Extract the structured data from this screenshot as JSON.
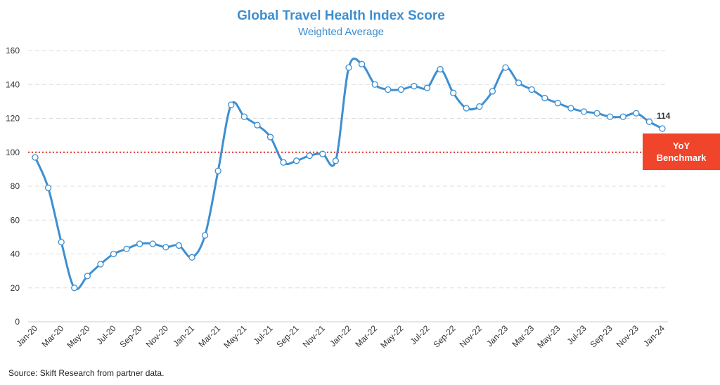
{
  "chart_data": {
    "type": "line",
    "title": "Global Travel Health Index Score",
    "subtitle": "Weighted Average",
    "ylim": [
      0,
      160
    ],
    "yticks": [
      0,
      20,
      40,
      60,
      80,
      100,
      120,
      140,
      160
    ],
    "x_tick_labels": [
      "Jan-20",
      "Mar-20",
      "May-20",
      "Jul-20",
      "Sep-20",
      "Nov-20",
      "Jan-21",
      "Mar-21",
      "May-21",
      "Jul-21",
      "Sep-21",
      "Nov-21",
      "Jan-22",
      "Mar-22",
      "May-22",
      "Jul-22",
      "Sep-22",
      "Nov-22",
      "Jan-23",
      "Mar-23",
      "May-23",
      "Jul-23",
      "Sep-23",
      "Nov-23",
      "Jan-24"
    ],
    "x": [
      "Jan-20",
      "Feb-20",
      "Mar-20",
      "Apr-20",
      "May-20",
      "Jun-20",
      "Jul-20",
      "Aug-20",
      "Sep-20",
      "Oct-20",
      "Nov-20",
      "Dec-20",
      "Jan-21",
      "Feb-21",
      "Mar-21",
      "Apr-21",
      "May-21",
      "Jun-21",
      "Jul-21",
      "Aug-21",
      "Sep-21",
      "Oct-21",
      "Nov-21",
      "Dec-21",
      "Jan-22",
      "Feb-22",
      "Mar-22",
      "Apr-22",
      "May-22",
      "Jun-22",
      "Jul-22",
      "Aug-22",
      "Sep-22",
      "Oct-22",
      "Nov-22",
      "Dec-22",
      "Jan-23",
      "Feb-23",
      "Mar-23",
      "Apr-23",
      "May-23",
      "Jun-23",
      "Jul-23",
      "Aug-23",
      "Sep-23",
      "Oct-23",
      "Nov-23",
      "Dec-23",
      "Jan-24"
    ],
    "series": [
      {
        "values": [
          97,
          79,
          47,
          20,
          27,
          34,
          40,
          43,
          46,
          46,
          44,
          45,
          38,
          51,
          89,
          128,
          121,
          116,
          109,
          94,
          95,
          98,
          99,
          95,
          150,
          152,
          140,
          137,
          137,
          139,
          138,
          149,
          135,
          126,
          127,
          136,
          150,
          141,
          137,
          132,
          129,
          126,
          124,
          123,
          121,
          121,
          123,
          118,
          114
        ],
        "color": "#3d8fd1"
      }
    ],
    "end_label": "114",
    "benchmark": {
      "value": 100,
      "label_line1": "YoY",
      "label_line2": "Benchmark",
      "color": "#e8302a",
      "box_color": "#f0452b"
    },
    "grid": true,
    "source": "Source: Skift Research from partner data."
  }
}
